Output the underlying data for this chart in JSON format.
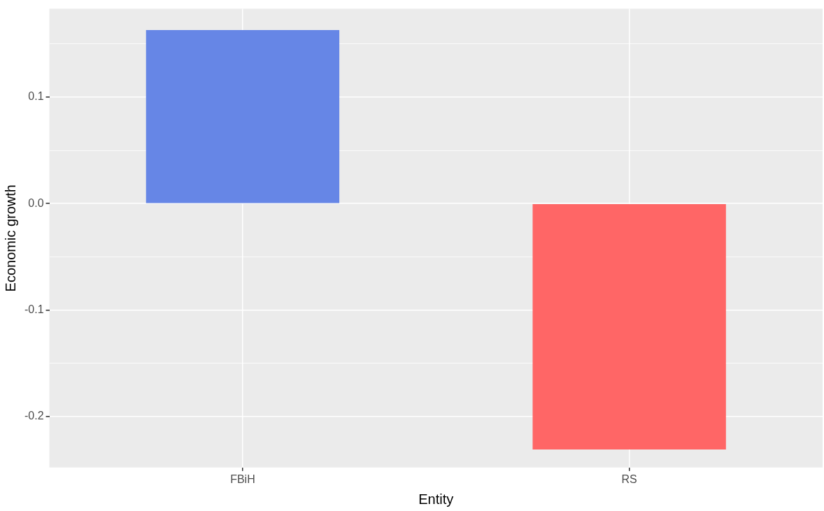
{
  "chart_data": {
    "type": "bar",
    "xlabel": "Entity",
    "ylabel": "Economic growth",
    "categories": [
      "FBiH",
      "RS"
    ],
    "values": [
      0.163,
      -0.231
    ],
    "colors": [
      "#6686e6",
      "#ff6666"
    ],
    "ylim": [
      -0.248,
      0.183
    ],
    "yticks": [
      {
        "value": -0.2,
        "label": "-0.2"
      },
      {
        "value": -0.15,
        "label": null
      },
      {
        "value": -0.1,
        "label": "-0.1"
      },
      {
        "value": -0.05,
        "label": null
      },
      {
        "value": 0,
        "label": "0.0"
      },
      {
        "value": 0.05,
        "label": null
      },
      {
        "value": 0.1,
        "label": "0.1"
      },
      {
        "value": 0.15,
        "label": null
      }
    ],
    "grid": true
  }
}
